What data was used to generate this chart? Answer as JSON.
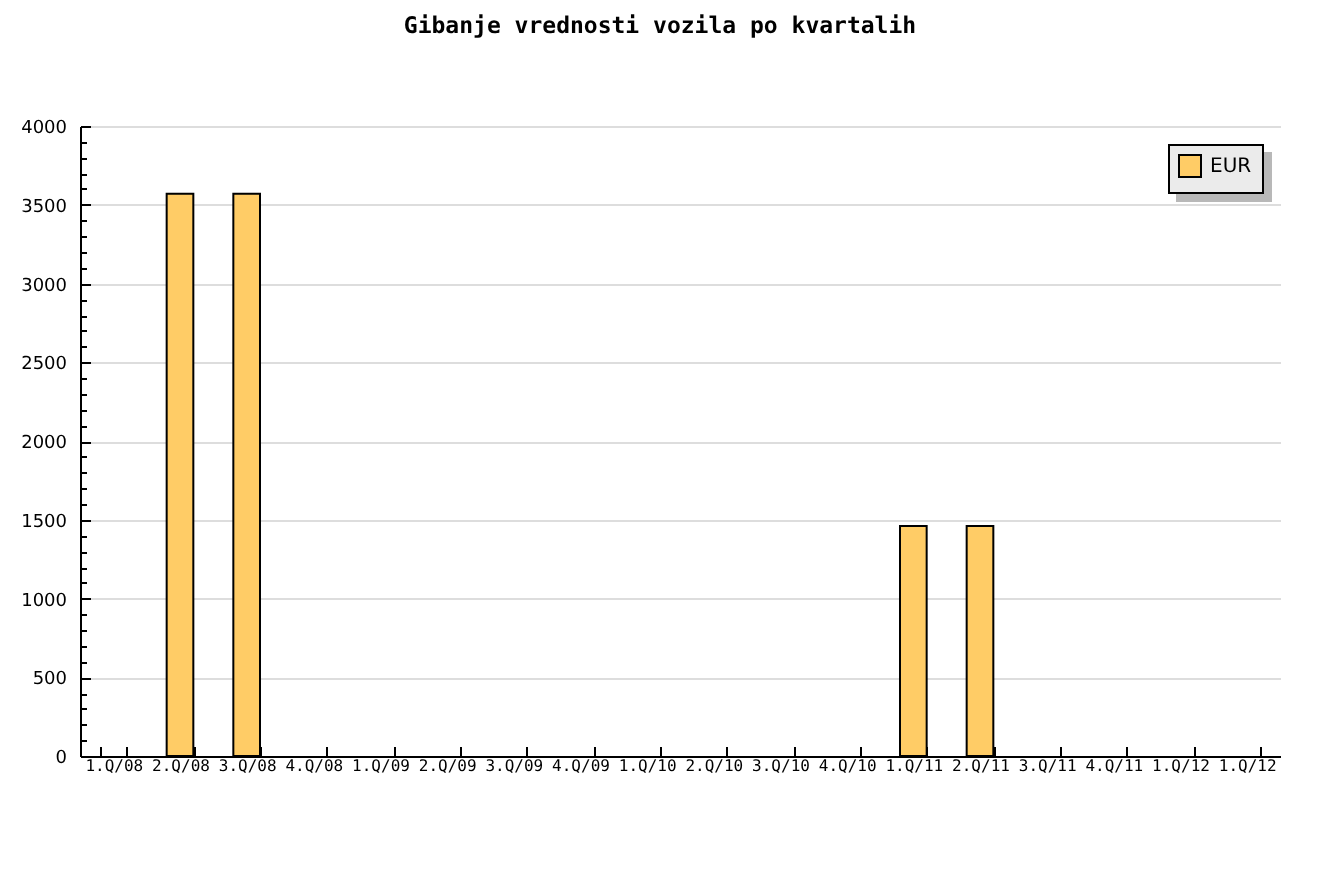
{
  "chart_data": {
    "type": "bar",
    "title": "Gibanje vrednosti vozila po kvartalih",
    "categories": [
      "1.Q/08",
      "2.Q/08",
      "3.Q/08",
      "4.Q/08",
      "1.Q/09",
      "2.Q/09",
      "3.Q/09",
      "4.Q/09",
      "1.Q/10",
      "2.Q/10",
      "3.Q/10",
      "4.Q/10",
      "1.Q/11",
      "2.Q/11",
      "3.Q/11",
      "4.Q/11",
      "1.Q/12",
      "1.Q/12"
    ],
    "series": [
      {
        "name": "EUR",
        "color": "#ffcc66",
        "values": [
          0,
          3570,
          3570,
          0,
          0,
          0,
          0,
          0,
          0,
          0,
          0,
          0,
          1460,
          1460,
          0,
          0,
          0,
          0
        ]
      }
    ],
    "ylim": [
      0,
      4000
    ],
    "yticks": [
      0,
      {
        "value": 100,
        "label": null
      },
      {
        "value": 200,
        "label": null
      },
      {
        "value": 300,
        "label": null
      },
      {
        "value": 400,
        "label": null
      },
      500,
      {
        "value": 600,
        "label": null
      },
      {
        "value": 700,
        "label": null
      },
      {
        "value": 800,
        "label": null
      },
      {
        "value": 900,
        "label": null
      },
      1000,
      {
        "value": 1100,
        "label": null
      },
      {
        "value": 1200,
        "label": null
      },
      {
        "value": 1300,
        "label": null
      },
      {
        "value": 1400,
        "label": null
      },
      1500,
      {
        "value": 1600,
        "label": null
      },
      {
        "value": 1700,
        "label": null
      },
      {
        "value": 1800,
        "label": null
      },
      {
        "value": 1900,
        "label": null
      },
      2000,
      {
        "value": 2100,
        "label": null
      },
      {
        "value": 2200,
        "label": null
      },
      {
        "value": 2300,
        "label": null
      },
      {
        "value": 2400,
        "label": null
      },
      2500,
      {
        "value": 2600,
        "label": null
      },
      {
        "value": 2700,
        "label": null
      },
      {
        "value": 2800,
        "label": null
      },
      {
        "value": 2900,
        "label": null
      },
      3000,
      {
        "value": 3100,
        "label": null
      },
      {
        "value": 3200,
        "label": null
      },
      {
        "value": 3300,
        "label": null
      },
      {
        "value": 3400,
        "label": null
      },
      3500,
      {
        "value": 3600,
        "label": null
      },
      {
        "value": 3700,
        "label": null
      },
      {
        "value": 3800,
        "label": null
      },
      {
        "value": 3900,
        "label": null
      },
      4000
    ],
    "grid": "y",
    "legend": "top right"
  }
}
